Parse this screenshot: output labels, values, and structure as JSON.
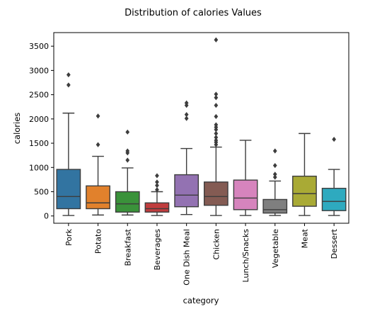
{
  "chart_data": {
    "type": "box",
    "title": "Distribution of calories Values",
    "xlabel": "category",
    "ylabel": "calories",
    "ylim": [
      -150,
      3780
    ],
    "yticks": [
      0,
      500,
      1000,
      1500,
      2000,
      2500,
      3000,
      3500
    ],
    "categories": [
      "Pork",
      "Potato",
      "Breakfast",
      "Beverages",
      "One Dish Meal",
      "Chicken",
      "Lunch/Snacks",
      "Vegetable",
      "Meat",
      "Dessert"
    ],
    "colors": [
      "#3274a1",
      "#e1812c",
      "#3a923a",
      "#c03d3e",
      "#9372b2",
      "#845b53",
      "#d684bd",
      "#7f7f7f",
      "#a9aa35",
      "#2eaabf"
    ],
    "boxes": [
      {
        "whislo": 10,
        "q1": 150,
        "med": 400,
        "q3": 960,
        "whishi": 2120,
        "fliers": [
          2700,
          2910
        ]
      },
      {
        "whislo": 20,
        "q1": 150,
        "med": 270,
        "q3": 620,
        "whishi": 1230,
        "fliers": [
          1470,
          2060
        ]
      },
      {
        "whislo": 20,
        "q1": 80,
        "med": 250,
        "q3": 500,
        "whishi": 990,
        "fliers": [
          1150,
          1300,
          1340,
          1730
        ]
      },
      {
        "whislo": 10,
        "q1": 80,
        "med": 150,
        "q3": 270,
        "whishi": 500,
        "fliers": [
          540,
          630,
          700,
          830
        ]
      },
      {
        "whislo": 30,
        "q1": 190,
        "med": 430,
        "q3": 850,
        "whishi": 1390,
        "fliers": [
          2010,
          2090,
          2280,
          2330
        ]
      },
      {
        "whislo": 10,
        "q1": 220,
        "med": 400,
        "q3": 700,
        "whishi": 1420,
        "fliers": [
          1470,
          1520,
          1560,
          1620,
          1700,
          1780,
          1830,
          1880,
          2050,
          2280,
          2440,
          2510,
          3630
        ]
      },
      {
        "whislo": 10,
        "q1": 130,
        "med": 370,
        "q3": 740,
        "whishi": 1560,
        "fliers": []
      },
      {
        "whislo": 10,
        "q1": 60,
        "med": 130,
        "q3": 340,
        "whishi": 720,
        "fliers": [
          800,
          860,
          1040,
          1340
        ]
      },
      {
        "whislo": 10,
        "q1": 200,
        "med": 460,
        "q3": 820,
        "whishi": 1700,
        "fliers": []
      },
      {
        "whislo": 10,
        "q1": 110,
        "med": 300,
        "q3": 570,
        "whishi": 960,
        "fliers": [
          1580
        ]
      }
    ]
  }
}
